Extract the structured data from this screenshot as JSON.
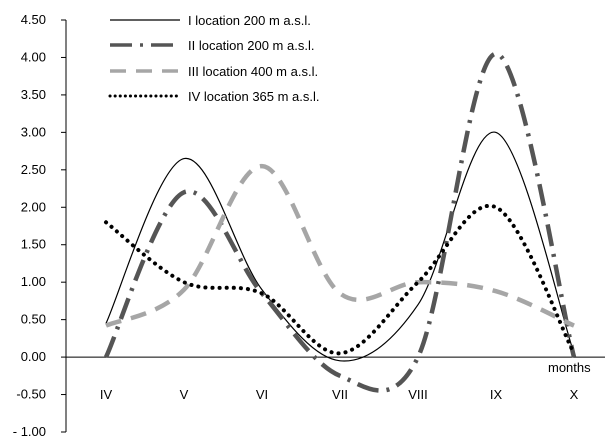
{
  "chart_data": {
    "type": "line",
    "title": "",
    "xlabel": "months",
    "ylabel": "",
    "categories": [
      "IV",
      "V",
      "VI",
      "VII",
      "VIII",
      "IX",
      "X"
    ],
    "ylim": [
      -1.0,
      4.5
    ],
    "yticks": [
      -1.0,
      -0.5,
      0.0,
      0.5,
      1.0,
      1.5,
      2.0,
      2.5,
      3.0,
      3.5,
      4.0,
      4.5
    ],
    "ytick_labels": [
      "- 1.00",
      "-0.50",
      "0.00",
      "0.50",
      "1.00",
      "1.50",
      "2.00",
      "2.50",
      "3.00",
      "3.50",
      "4.00",
      "4.50"
    ],
    "grid": false,
    "legend_position": "top-left",
    "series": [
      {
        "name": "I location 200 m a.s.l.",
        "style": "solid",
        "color": "#000000",
        "x": [
          0,
          1,
          2,
          3,
          4,
          5,
          6
        ],
        "values": [
          0.45,
          2.65,
          0.9,
          -0.05,
          0.7,
          3.0,
          0.05
        ]
      },
      {
        "name": "II location 200 m a.s.l.",
        "style": "dashdot",
        "color": "#555555",
        "x": [
          0,
          1,
          2,
          3,
          4,
          5,
          6
        ],
        "values": [
          0.0,
          2.2,
          0.85,
          -0.25,
          0.0,
          4.05,
          0.0
        ]
      },
      {
        "name": "III location 400 m a.s.l.",
        "style": "dashed",
        "color": "#a6a6a6",
        "x": [
          0,
          1,
          2,
          3,
          4,
          5,
          6
        ],
        "values": [
          0.42,
          0.9,
          2.55,
          0.85,
          1.0,
          0.88,
          0.42
        ]
      },
      {
        "name": "IV location 365 m a.s.l.",
        "style": "dotted",
        "color": "#000000",
        "x": [
          0,
          1,
          2,
          3,
          4,
          5,
          6
        ],
        "values": [
          1.8,
          1.0,
          0.85,
          0.05,
          1.0,
          2.0,
          0.05
        ]
      }
    ]
  }
}
